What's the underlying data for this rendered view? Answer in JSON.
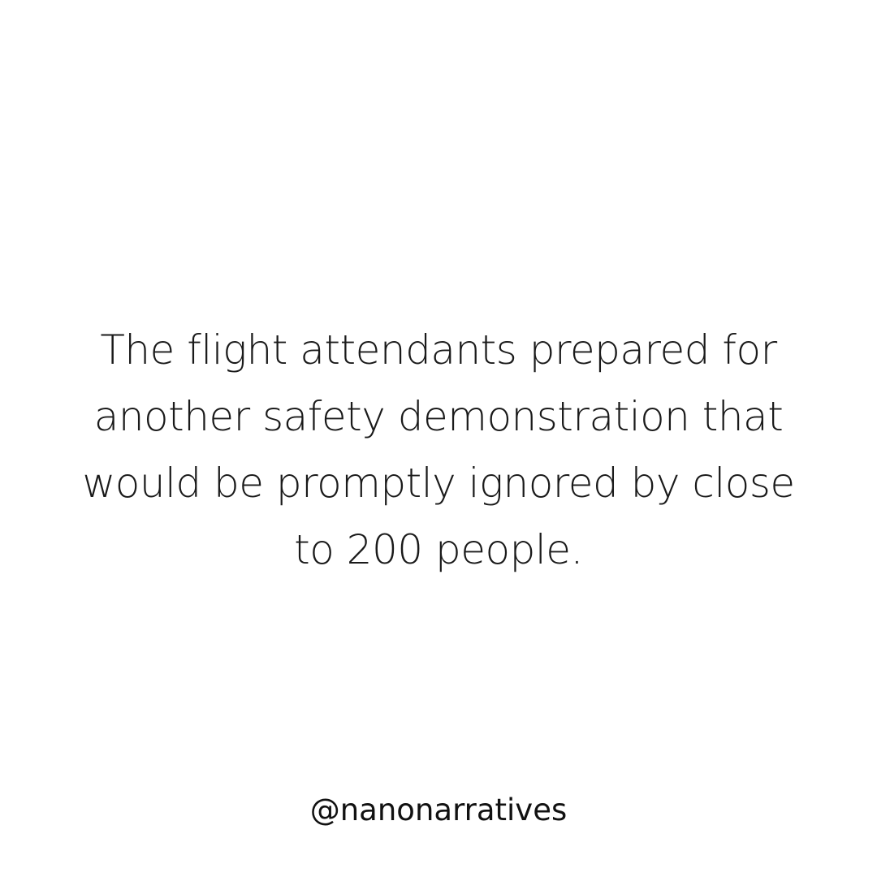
{
  "post": {
    "quote_lines": [
      "The flight attendants prepared for",
      "another safety demonstration that",
      "would be promptly ignored by close",
      "to 200 people."
    ],
    "handle": "@nanonarratives",
    "colors": {
      "background": "#ffffff",
      "text": "#1a1a1a"
    }
  }
}
